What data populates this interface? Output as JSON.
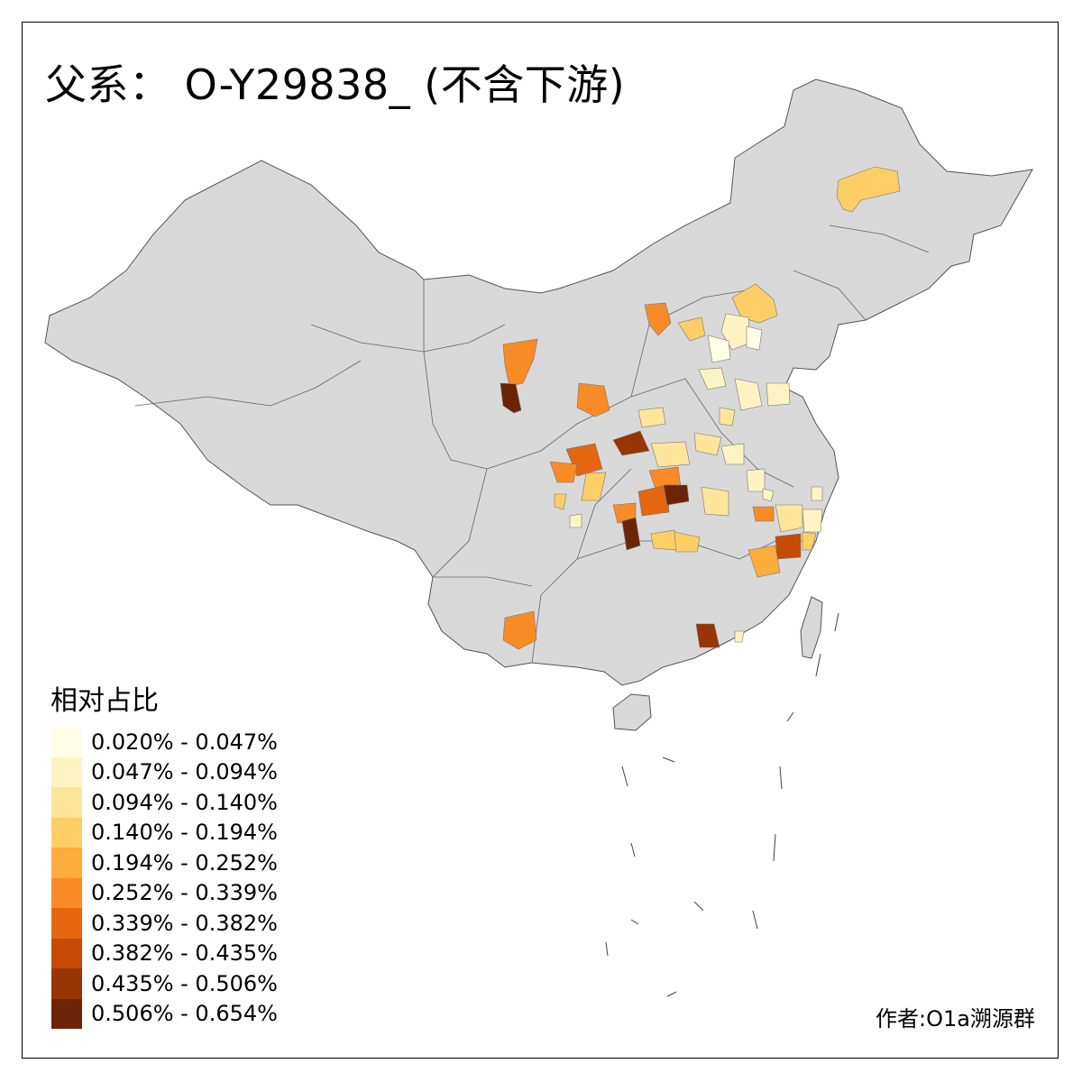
{
  "title": "父系： O-Y29838_ (不含下游)",
  "legend": {
    "title": "相对占比",
    "items": [
      {
        "label": "0.020% - 0.047%",
        "color": "#fffde6"
      },
      {
        "label": "0.047% - 0.094%",
        "color": "#fff3c4"
      },
      {
        "label": "0.094% - 0.140%",
        "color": "#fee59a"
      },
      {
        "label": "0.140% - 0.194%",
        "color": "#fecf66"
      },
      {
        "label": "0.194% - 0.252%",
        "color": "#feac3c"
      },
      {
        "label": "0.252% - 0.339%",
        "color": "#f98b26"
      },
      {
        "label": "0.339% - 0.382%",
        "color": "#e5660f"
      },
      {
        "label": "0.382% - 0.435%",
        "color": "#c64b05"
      },
      {
        "label": "0.435% - 0.506%",
        "color": "#993404"
      },
      {
        "label": "0.506% - 0.654%",
        "color": "#6b2506"
      }
    ]
  },
  "credit": "作者:O1a溯源群",
  "colors": {
    "land": "#d9d9d9",
    "border": "#555555",
    "frame": "#000000"
  }
}
